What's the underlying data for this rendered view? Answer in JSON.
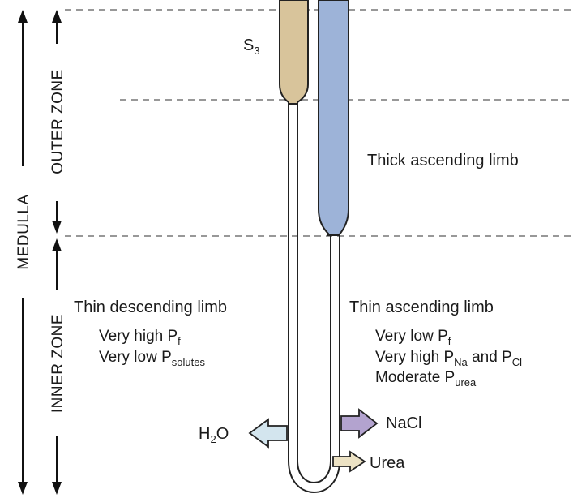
{
  "zones": {
    "medulla": "MEDULLA",
    "outer_zone": "OUTER ZONE",
    "inner_zone": "INNER ZONE"
  },
  "segments": {
    "s3": {
      "main": "S",
      "sub": "3"
    },
    "thick_ascending": "Thick ascending limb",
    "thin_descending": "Thin descending limb",
    "thin_ascending": "Thin ascending limb"
  },
  "descending_props": [
    {
      "main": "Very high P",
      "sub": "f",
      "tail": ""
    },
    {
      "main": "Very low P",
      "sub": "solutes",
      "tail": ""
    }
  ],
  "ascending_props": {
    "line1": {
      "main": "Very low P",
      "sub": "f"
    },
    "line2": {
      "main": "Very high P",
      "sub1": "Na",
      "mid": " and P",
      "sub2": "Cl"
    },
    "line3": {
      "main": "Moderate P",
      "sub": "urea"
    }
  },
  "fluxes": {
    "water": {
      "pre": "H",
      "sub": "2",
      "post": "O"
    },
    "nacl": "NaCl",
    "urea": "Urea"
  },
  "colors": {
    "s3_fill": "#d8c49b",
    "thick_fill": "#9db3d8",
    "water_arrow": "#d3e5ee",
    "nacl_arrow": "#b3a3cf",
    "urea_arrow": "#ece2c4",
    "outline": "#222222",
    "dash": "#777777"
  }
}
